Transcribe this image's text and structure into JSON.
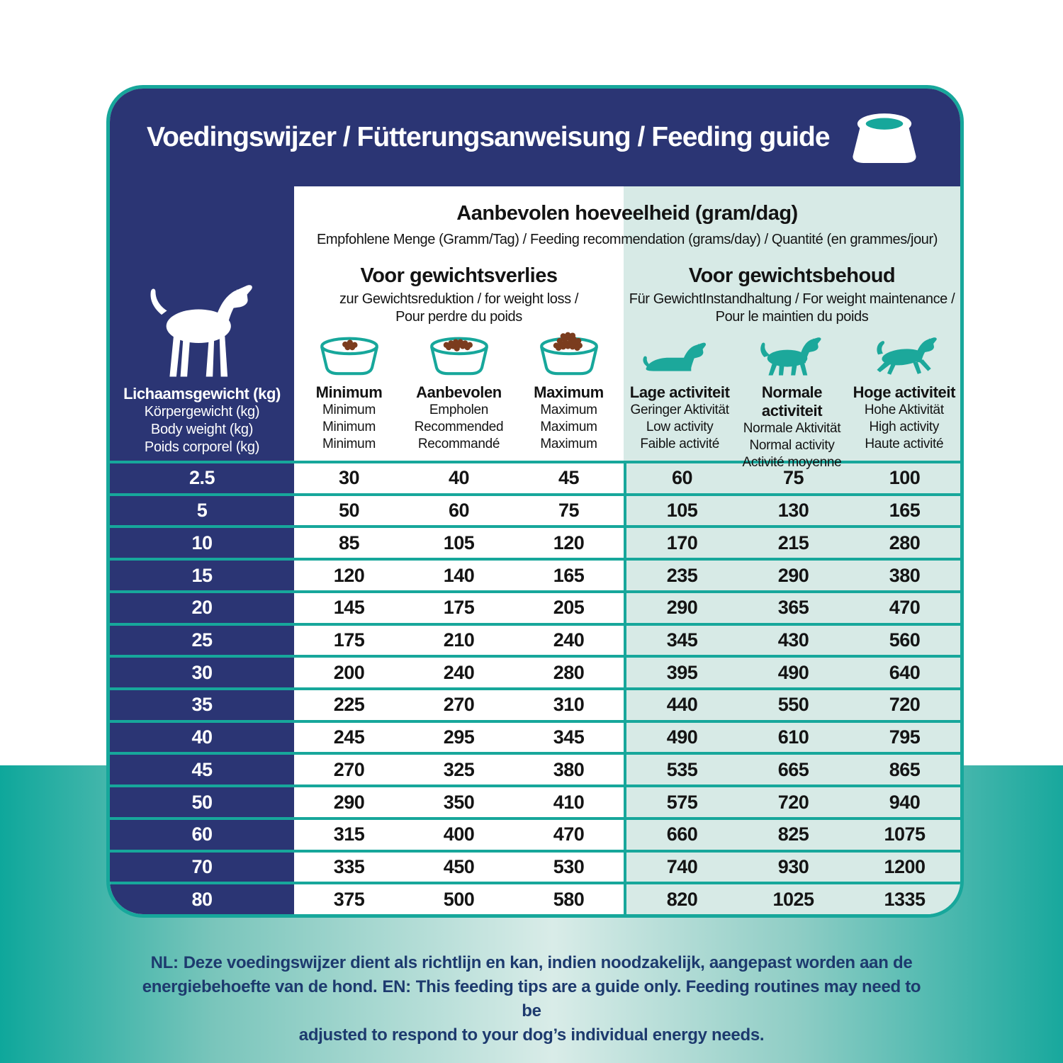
{
  "header": {
    "title": "Voedingswijzer / Fütterungsanweisung / Feeding guide",
    "icon": "dog-bowl-icon"
  },
  "table": {
    "recommended_title": "Aanbevolen hoeveelheid (gram/dag)",
    "recommended_subtitle": "Empfohlene Menge (Gramm/Tag) / Feeding recommendation (grams/day) / Quantité (en grammes/jour)",
    "weight_header": {
      "icon": "standing-dog-icon",
      "bold": "Lichaamsgewicht (kg)",
      "lines": [
        "Körpergewicht (kg)",
        "Body weight (kg)",
        "Poids corporel (kg)"
      ]
    },
    "loss_section": {
      "title": "Voor gewichtsverlies",
      "subtitle1": "zur Gewichtsreduktion / for weight loss /",
      "subtitle2": "Pour perdre du poids",
      "columns": [
        {
          "icon": "bowl-low-icon",
          "bold": "Minimum",
          "lines": [
            "Minimum",
            "Minimum",
            "Minimum"
          ]
        },
        {
          "icon": "bowl-medium-icon",
          "bold": "Aanbevolen",
          "lines": [
            "Empholen",
            "Recommended",
            "Recommandé"
          ]
        },
        {
          "icon": "bowl-full-icon",
          "bold": "Maximum",
          "lines": [
            "Maximum",
            "Maximum",
            "Maximum"
          ]
        }
      ]
    },
    "maint_section": {
      "title": "Voor gewichtsbehoud",
      "subtitle1": "Für GewichtInstandhaltung / For weight maintenance /",
      "subtitle2": "Pour le maintien du poids",
      "columns": [
        {
          "icon": "dog-lying-icon",
          "bold": "Lage activiteit",
          "lines": [
            "Geringer Aktivität",
            "Low activity",
            "Faible activité"
          ]
        },
        {
          "icon": "dog-walking-icon",
          "bold": "Normale activiteit",
          "lines": [
            "Normale Aktivität",
            "Normal activity",
            "Activité moyenne"
          ]
        },
        {
          "icon": "dog-running-icon",
          "bold": "Hoge activiteit",
          "lines": [
            "Hohe Aktivität",
            "High activity",
            "Haute activité"
          ]
        }
      ]
    },
    "rows": [
      {
        "weight": "2.5",
        "loss": [
          "30",
          "40",
          "45"
        ],
        "maint": [
          "60",
          "75",
          "100"
        ]
      },
      {
        "weight": "5",
        "loss": [
          "50",
          "60",
          "75"
        ],
        "maint": [
          "105",
          "130",
          "165"
        ]
      },
      {
        "weight": "10",
        "loss": [
          "85",
          "105",
          "120"
        ],
        "maint": [
          "170",
          "215",
          "280"
        ]
      },
      {
        "weight": "15",
        "loss": [
          "120",
          "140",
          "165"
        ],
        "maint": [
          "235",
          "290",
          "380"
        ]
      },
      {
        "weight": "20",
        "loss": [
          "145",
          "175",
          "205"
        ],
        "maint": [
          "290",
          "365",
          "470"
        ]
      },
      {
        "weight": "25",
        "loss": [
          "175",
          "210",
          "240"
        ],
        "maint": [
          "345",
          "430",
          "560"
        ]
      },
      {
        "weight": "30",
        "loss": [
          "200",
          "240",
          "280"
        ],
        "maint": [
          "395",
          "490",
          "640"
        ]
      },
      {
        "weight": "35",
        "loss": [
          "225",
          "270",
          "310"
        ],
        "maint": [
          "440",
          "550",
          "720"
        ]
      },
      {
        "weight": "40",
        "loss": [
          "245",
          "295",
          "345"
        ],
        "maint": [
          "490",
          "610",
          "795"
        ]
      },
      {
        "weight": "45",
        "loss": [
          "270",
          "325",
          "380"
        ],
        "maint": [
          "535",
          "665",
          "865"
        ]
      },
      {
        "weight": "50",
        "loss": [
          "290",
          "350",
          "410"
        ],
        "maint": [
          "575",
          "720",
          "940"
        ]
      },
      {
        "weight": "60",
        "loss": [
          "315",
          "400",
          "470"
        ],
        "maint": [
          "660",
          "825",
          "1075"
        ]
      },
      {
        "weight": "70",
        "loss": [
          "335",
          "450",
          "530"
        ],
        "maint": [
          "740",
          "930",
          "1200"
        ]
      },
      {
        "weight": "80",
        "loss": [
          "375",
          "500",
          "580"
        ],
        "maint": [
          "820",
          "1025",
          "1335"
        ]
      }
    ]
  },
  "footer": {
    "line1_label": "NL:",
    "line1_text": "Deze voedingswijzer dient als richtlijn en kan, indien noodzakelijk, aangepast worden aan de",
    "line2_pre": "energiebehoefte van de hond.",
    "line2_label": "EN:",
    "line2_post": "This feeding tips are a guide only. Feeding routines may need to be",
    "line3": "adjusted to respond to your dog’s individual energy needs."
  },
  "colors": {
    "navy": "#2b3574",
    "teal_accent": "#17a79b",
    "light_teal_cells": "#d7eae6",
    "kibble_brown": "#7b3c1e",
    "footer_text": "#1d3a6e",
    "bg_gradient": [
      "#0ea79b",
      "#d9ece8",
      "#18a89d"
    ]
  }
}
